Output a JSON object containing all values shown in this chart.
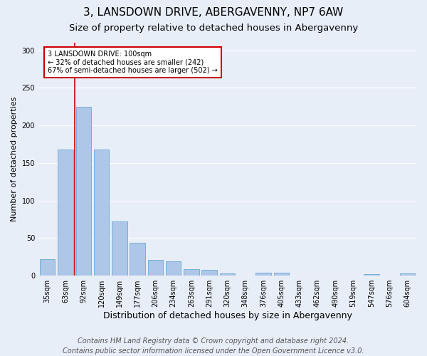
{
  "title1": "3, LANSDOWN DRIVE, ABERGAVENNY, NP7 6AW",
  "title2": "Size of property relative to detached houses in Abergavenny",
  "xlabel": "Distribution of detached houses by size in Abergavenny",
  "ylabel": "Number of detached properties",
  "footer1": "Contains HM Land Registry data © Crown copyright and database right 2024.",
  "footer2": "Contains public sector information licensed under the Open Government Licence v3.0.",
  "categories": [
    "35sqm",
    "63sqm",
    "92sqm",
    "120sqm",
    "149sqm",
    "177sqm",
    "206sqm",
    "234sqm",
    "263sqm",
    "291sqm",
    "320sqm",
    "348sqm",
    "376sqm",
    "405sqm",
    "433sqm",
    "462sqm",
    "490sqm",
    "519sqm",
    "547sqm",
    "576sqm",
    "604sqm"
  ],
  "values": [
    22,
    168,
    225,
    168,
    72,
    44,
    21,
    19,
    9,
    8,
    3,
    0,
    4,
    4,
    0,
    0,
    0,
    0,
    2,
    0,
    3
  ],
  "bar_color": "#aec6e8",
  "bar_edge_color": "#6aaad4",
  "highlight_color": "#cc0000",
  "annotation_text": "3 LANSDOWN DRIVE: 100sqm\n← 32% of detached houses are smaller (242)\n67% of semi-detached houses are larger (502) →",
  "annotation_box_color": "#ffffff",
  "annotation_box_edge": "#cc0000",
  "ylim": [
    0,
    310
  ],
  "yticks": [
    0,
    50,
    100,
    150,
    200,
    250,
    300
  ],
  "bg_color": "#e8eef8",
  "plot_bg_color": "#e8eef8",
  "grid_color": "#ffffff",
  "title1_fontsize": 11,
  "title2_fontsize": 9.5,
  "xlabel_fontsize": 9,
  "ylabel_fontsize": 8,
  "footer_fontsize": 7,
  "tick_fontsize": 7,
  "annot_fontsize": 7
}
